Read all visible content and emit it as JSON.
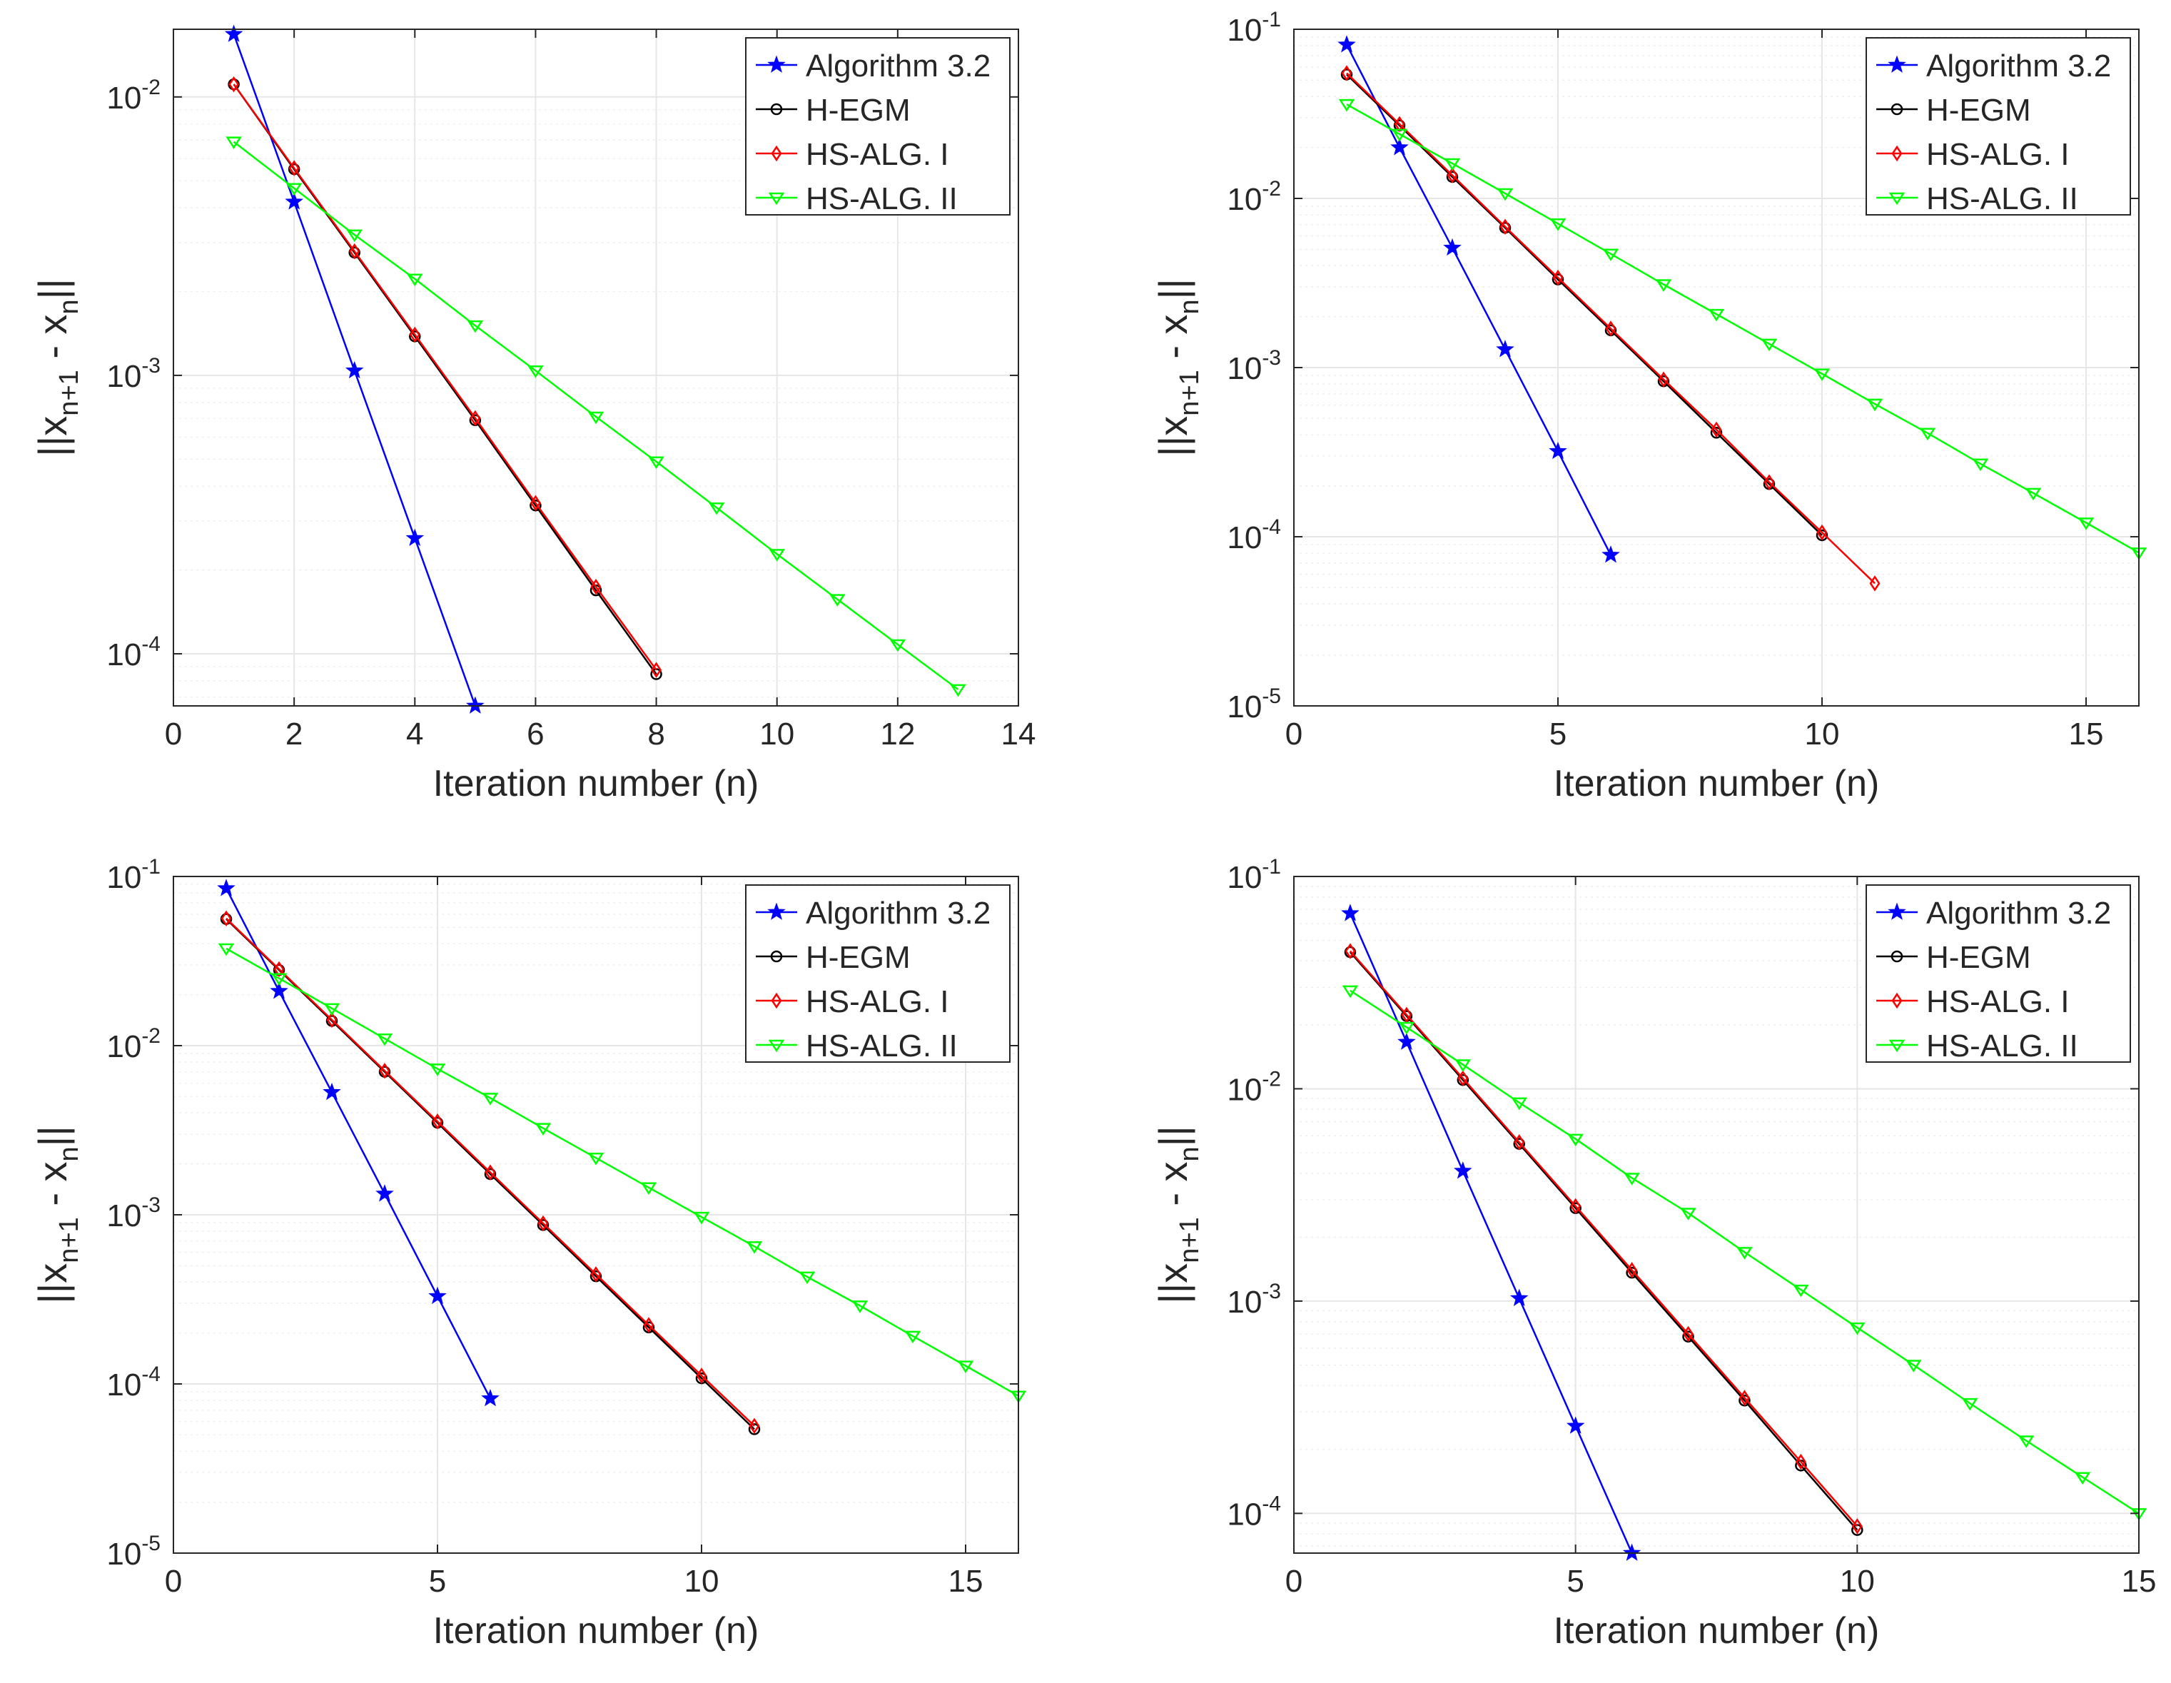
{
  "colors": {
    "algorithm": "#0000ff",
    "hegm": "#000000",
    "hs1": "#ff0000",
    "hs2": "#00ff00",
    "grid": "#e6e6e6",
    "axis": "#262626"
  },
  "chart_data": [
    {
      "type": "line",
      "xscale": "linear",
      "yscale": "log",
      "xlabel": "Iteration number (n)",
      "ylabel": "||x_{n+1} - x_n||",
      "xlim": [
        0,
        14
      ],
      "ylim": [
        6.5e-05,
        0.0175
      ],
      "xticks": [
        0,
        2,
        4,
        6,
        8,
        10,
        12,
        14
      ],
      "xtick_labels": [
        "0",
        "2",
        "4",
        "6",
        "8",
        "10",
        "12",
        "14"
      ],
      "yticks": [
        {
          "exp": -4,
          "value": 0.0001,
          "label": "10",
          "sup": "-4"
        },
        {
          "exp": -3,
          "value": 0.001,
          "label": "10",
          "sup": "-3"
        },
        {
          "exp": -2,
          "value": 0.01,
          "label": "10",
          "sup": "-2"
        }
      ],
      "legend": "top-right",
      "series": [
        {
          "name": "Algorithm 3.2",
          "color": "#0000ff",
          "marker": "star",
          "x": [
            1,
            2,
            3,
            4,
            5
          ],
          "y": [
            0.0168,
            0.0042,
            0.00104,
            0.00026,
            6.5e-05
          ]
        },
        {
          "name": "H-EGM",
          "color": "#000000",
          "marker": "circle",
          "x": [
            1,
            2,
            3,
            4,
            5,
            6,
            7,
            8
          ],
          "y": [
            0.0111,
            0.0055,
            0.00276,
            0.00138,
            0.00069,
            0.000341,
            0.000169,
            8.45e-05
          ]
        },
        {
          "name": "HS-ALG. I",
          "color": "#ff0000",
          "marker": "diamond",
          "x": [
            1,
            2,
            3,
            4,
            5,
            6,
            7,
            8
          ],
          "y": [
            0.0111,
            0.00555,
            0.00279,
            0.0014,
            0.000702,
            0.000348,
            0.000174,
            8.75e-05
          ]
        },
        {
          "name": "HS-ALG. II",
          "color": "#00ff00",
          "marker": "triangle-down",
          "x": [
            1,
            2,
            3,
            4,
            5,
            6,
            7,
            8,
            9,
            10,
            11,
            12,
            13
          ],
          "y": [
            0.0069,
            0.0047,
            0.0032,
            0.00222,
            0.00151,
            0.00104,
            0.00071,
            0.00049,
            0.000335,
            0.000228,
            0.000157,
            0.000108,
            7.45e-05
          ]
        }
      ]
    },
    {
      "type": "line",
      "xscale": "linear",
      "yscale": "log",
      "xlabel": "Iteration number (n)",
      "ylabel": "||x_{n+1} - x_n||",
      "xlim": [
        0,
        16
      ],
      "ylim": [
        1e-05,
        0.1
      ],
      "xticks": [
        0,
        5,
        10,
        15
      ],
      "xtick_labels": [
        "0",
        "5",
        "10",
        "15"
      ],
      "yticks": [
        {
          "exp": -5,
          "value": 1e-05,
          "label": "10",
          "sup": "-5"
        },
        {
          "exp": -4,
          "value": 0.0001,
          "label": "10",
          "sup": "-4"
        },
        {
          "exp": -3,
          "value": 0.001,
          "label": "10",
          "sup": "-3"
        },
        {
          "exp": -2,
          "value": 0.01,
          "label": "10",
          "sup": "-2"
        },
        {
          "exp": -1,
          "value": 0.1,
          "label": "10",
          "sup": "-1"
        }
      ],
      "legend": "top-right",
      "series": [
        {
          "name": "Algorithm 3.2",
          "color": "#0000ff",
          "marker": "star",
          "x": [
            1,
            2,
            3,
            4,
            5,
            6
          ],
          "y": [
            0.081,
            0.02,
            0.0051,
            0.00128,
            0.00032,
            7.8e-05
          ]
        },
        {
          "name": "H-EGM",
          "color": "#000000",
          "marker": "circle",
          "x": [
            1,
            2,
            3,
            4,
            5,
            6,
            7,
            8,
            9,
            10
          ],
          "y": [
            0.054,
            0.027,
            0.0134,
            0.0067,
            0.00332,
            0.00166,
            0.00083,
            0.000412,
            0.000205,
            0.000102
          ]
        },
        {
          "name": "HS-ALG. I",
          "color": "#ff0000",
          "marker": "diamond",
          "x": [
            1,
            2,
            3,
            4,
            5,
            6,
            7,
            8,
            9,
            10,
            11
          ],
          "y": [
            0.055,
            0.0275,
            0.0137,
            0.0068,
            0.0034,
            0.0017,
            0.00085,
            0.00043,
            0.00021,
            0.000106,
            5.3e-05
          ]
        },
        {
          "name": "HS-ALG. II",
          "color": "#00ff00",
          "marker": "triangle-down",
          "x": [
            1,
            2,
            3,
            4,
            5,
            6,
            7,
            8,
            9,
            10,
            11,
            12,
            13,
            14,
            15,
            16
          ],
          "y": [
            0.036,
            0.024,
            0.0161,
            0.0107,
            0.0071,
            0.0047,
            0.0031,
            0.00207,
            0.00138,
            0.00092,
            0.00061,
            0.00041,
            0.00027,
            0.000181,
            0.000121,
            8.05e-05
          ]
        }
      ]
    },
    {
      "type": "line",
      "xscale": "linear",
      "yscale": "log",
      "xlabel": "Iteration number (n)",
      "ylabel": "||x_{n+1} - x_n||",
      "xlim": [
        0,
        16
      ],
      "ylim": [
        1e-05,
        0.1
      ],
      "xticks": [
        0,
        5,
        10,
        15
      ],
      "xtick_labels": [
        "0",
        "5",
        "10",
        "15"
      ],
      "yticks": [
        {
          "exp": -5,
          "value": 1e-05,
          "label": "10",
          "sup": "-5"
        },
        {
          "exp": -4,
          "value": 0.0001,
          "label": "10",
          "sup": "-4"
        },
        {
          "exp": -3,
          "value": 0.001,
          "label": "10",
          "sup": "-3"
        },
        {
          "exp": -2,
          "value": 0.01,
          "label": "10",
          "sup": "-2"
        },
        {
          "exp": -1,
          "value": 0.1,
          "label": "10",
          "sup": "-1"
        }
      ],
      "legend": "top-right",
      "series": [
        {
          "name": "Algorithm 3.2",
          "color": "#0000ff",
          "marker": "star",
          "x": [
            1,
            2,
            3,
            4,
            5,
            6
          ],
          "y": [
            0.085,
            0.021,
            0.0053,
            0.00133,
            0.00033,
            8.2e-05
          ]
        },
        {
          "name": "H-EGM",
          "color": "#000000",
          "marker": "circle",
          "x": [
            1,
            2,
            3,
            4,
            5,
            6,
            7,
            8,
            9,
            10,
            11
          ],
          "y": [
            0.056,
            0.028,
            0.014,
            0.007,
            0.0035,
            0.00174,
            0.00087,
            0.000433,
            0.000216,
            0.000108,
            5.4e-05
          ]
        },
        {
          "name": "HS-ALG. I",
          "color": "#ff0000",
          "marker": "diamond",
          "x": [
            1,
            2,
            3,
            4,
            5,
            6,
            7,
            8,
            9,
            10,
            11
          ],
          "y": [
            0.0565,
            0.0283,
            0.0142,
            0.0071,
            0.00356,
            0.00178,
            0.00089,
            0.000445,
            0.000223,
            0.000112,
            5.65e-05
          ]
        },
        {
          "name": "HS-ALG. II",
          "color": "#00ff00",
          "marker": "triangle-down",
          "x": [
            1,
            2,
            3,
            4,
            5,
            6,
            7,
            8,
            9,
            10,
            11,
            12,
            13,
            14,
            15,
            16
          ],
          "y": [
            0.0375,
            0.025,
            0.0166,
            0.011,
            0.0073,
            0.0049,
            0.00325,
            0.00217,
            0.00145,
            0.00097,
            0.00065,
            0.00043,
            0.00029,
            0.000192,
            0.000128,
            8.5e-05
          ]
        }
      ]
    },
    {
      "type": "line",
      "xscale": "linear",
      "yscale": "log",
      "xlabel": "Iteration number (n)",
      "ylabel": "||x_{n+1} - x_n||",
      "xlim": [
        0,
        15
      ],
      "ylim": [
        6.5e-05,
        0.1
      ],
      "xticks": [
        0,
        5,
        10,
        15
      ],
      "xtick_labels": [
        "0",
        "5",
        "10",
        "15"
      ],
      "yticks": [
        {
          "exp": -4,
          "value": 0.0001,
          "label": "10",
          "sup": "-4"
        },
        {
          "exp": -3,
          "value": 0.001,
          "label": "10",
          "sup": "-3"
        },
        {
          "exp": -2,
          "value": 0.01,
          "label": "10",
          "sup": "-2"
        },
        {
          "exp": -1,
          "value": 0.1,
          "label": "10",
          "sup": "-1"
        }
      ],
      "legend": "top-right",
      "series": [
        {
          "name": "Algorithm 3.2",
          "color": "#0000ff",
          "marker": "star",
          "x": [
            1,
            2,
            3,
            4,
            5,
            6
          ],
          "y": [
            0.067,
            0.0166,
            0.0041,
            0.00103,
            0.000258,
            6.5e-05
          ]
        },
        {
          "name": "H-EGM",
          "color": "#000000",
          "marker": "circle",
          "x": [
            1,
            2,
            3,
            4,
            5,
            6,
            7,
            8,
            9,
            10
          ],
          "y": [
            0.044,
            0.022,
            0.011,
            0.0055,
            0.00274,
            0.00136,
            0.00068,
            0.00034,
            0.000168,
            8.35e-05
          ]
        },
        {
          "name": "HS-ALG. I",
          "color": "#ff0000",
          "marker": "diamond",
          "x": [
            1,
            2,
            3,
            4,
            5,
            6,
            7,
            8,
            9,
            10
          ],
          "y": [
            0.0445,
            0.0223,
            0.0112,
            0.0056,
            0.0028,
            0.0014,
            0.0007,
            0.00035,
            0.000175,
            8.7e-05
          ]
        },
        {
          "name": "HS-ALG. II",
          "color": "#00ff00",
          "marker": "triangle-down",
          "x": [
            1,
            2,
            3,
            4,
            5,
            6,
            7,
            8,
            9,
            10,
            11,
            12,
            13,
            14,
            15
          ],
          "y": [
            0.029,
            0.0195,
            0.013,
            0.0086,
            0.0058,
            0.0038,
            0.0026,
            0.0017,
            0.00113,
            0.00075,
            0.0005,
            0.00033,
            0.00022,
            0.000148,
            0.0001
          ]
        }
      ]
    }
  ]
}
